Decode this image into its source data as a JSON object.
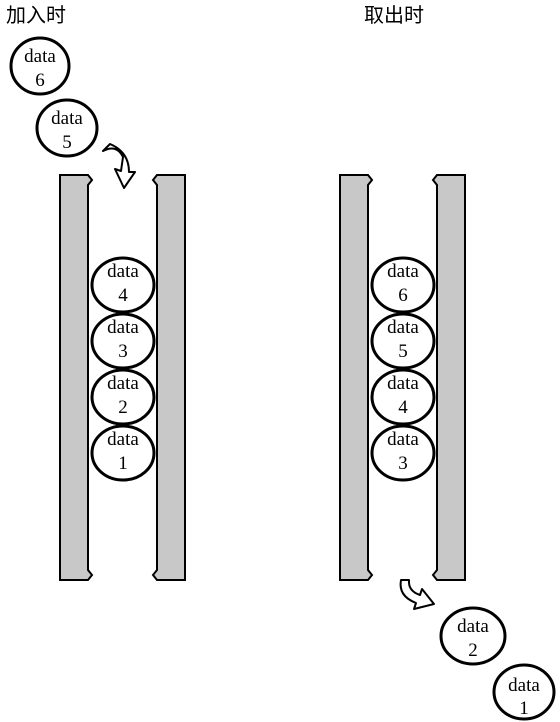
{
  "titles": {
    "left": "加入时",
    "right": "取出时"
  },
  "left": {
    "incoming": [
      {
        "top": "data",
        "bottom": "6"
      },
      {
        "top": "data",
        "bottom": "5"
      }
    ],
    "stack": [
      {
        "top": "data",
        "bottom": "4"
      },
      {
        "top": "data",
        "bottom": "3"
      },
      {
        "top": "data",
        "bottom": "2"
      },
      {
        "top": "data",
        "bottom": "1"
      }
    ]
  },
  "right": {
    "stack": [
      {
        "top": "data",
        "bottom": "6"
      },
      {
        "top": "data",
        "bottom": "5"
      },
      {
        "top": "data",
        "bottom": "4"
      },
      {
        "top": "data",
        "bottom": "3"
      }
    ],
    "outgoing": [
      {
        "top": "data",
        "bottom": "2"
      },
      {
        "top": "data",
        "bottom": "1"
      }
    ]
  },
  "colors": {
    "wall_fill": "#c8c8c8",
    "ball_fill": "#ffffff",
    "stroke": "#000000"
  }
}
